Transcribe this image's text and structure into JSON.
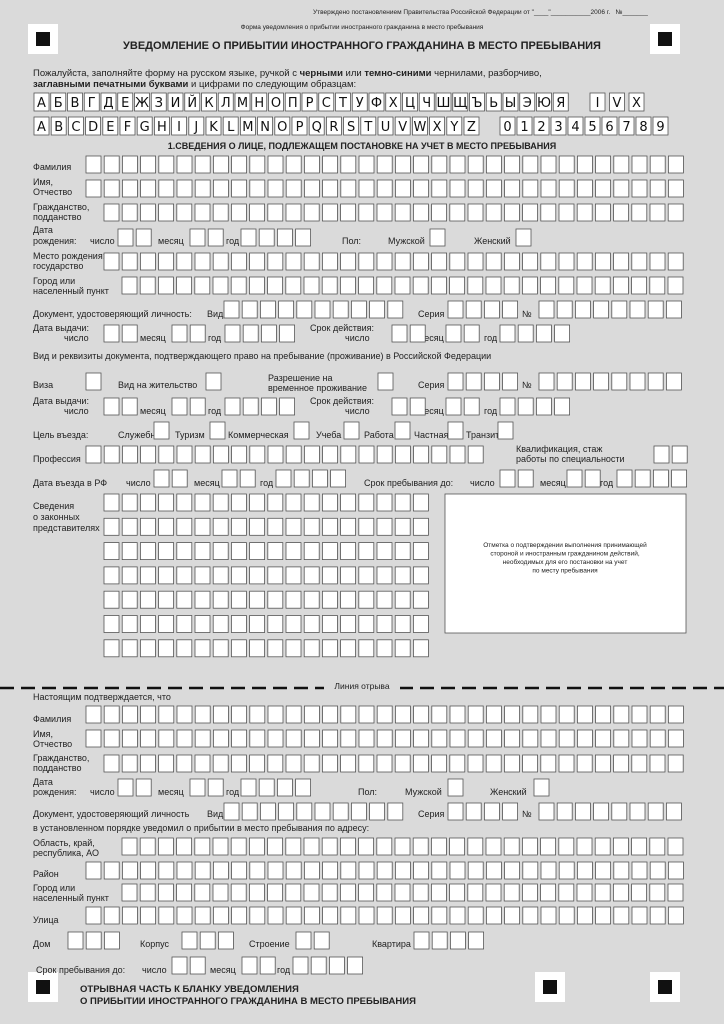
{
  "header": {
    "approval": "Утверждено постановлением Правительства Российской Федерации от \"____\"___________2006 г.   №_______",
    "form_name": "Форма уведомления о прибытии иностранного гражданина в место пребывания",
    "title": "УВЕДОМЛЕНИЕ О ПРИБЫТИИ ИНОСТРАННОГО ГРАЖДАНИНА В МЕСТО ПРЕБЫВАНИЯ",
    "instructions": [
      [
        {
          "text": "Пожалуйста, заполняйте форму на русском языке, ручкой с ",
          "bold": false
        },
        {
          "text": "черными",
          "bold": true
        },
        {
          "text": " или ",
          "bold": false
        },
        {
          "text": "темно-синими",
          "bold": true
        },
        {
          "text": " чернилами, разборчиво,",
          "bold": false
        }
      ],
      [
        {
          "text": "заглавными печатными буквами",
          "bold": true
        },
        {
          "text": " и цифрами по следующим образцам:",
          "bold": false
        }
      ]
    ]
  },
  "samples": {
    "cyrillic": "АБВГДЕЖЗИЙКЛМНОПРСТУФХЦЧШЩЪЬЫЭЮЯ",
    "roman": "IVX",
    "latin": "ABCDEFGHIJKLMNOPQRSTUVWXYZ",
    "digits": "0123456789"
  },
  "part1": {
    "title": "1.СВЕДЕНИЯ О ЛИЦЕ, ПОДЛЕЖАЩЕМ ПОСТАНОВКЕ НА УЧЕТ В МЕСТО ПРЕБЫВАНИЯ",
    "labels": [
      "Фамилия",
      "Имя,",
      "Отчество",
      "Гражданство,",
      "подданство",
      "Дата",
      "рождения:",
      "число",
      "месяц",
      "год",
      "Пол:",
      "Мужской",
      "Женский",
      "Место рождения:",
      "государство",
      "Город или",
      "населенный пункт",
      "Документ, удостоверяющий личность:",
      "Вид",
      "Серия",
      "№",
      "Дата выдачи:",
      "число",
      "месяц",
      "год",
      "Срок действия:",
      "число",
      "месяц",
      "год",
      "Вид и реквизиты документа, подтверждающего право на пребывание (проживание) в Российской Федерации",
      "Виза",
      "Вид на жительство",
      "Разрешение на",
      "временное проживание",
      "Серия",
      "№",
      "Дата выдачи:",
      "число",
      "месяц",
      "год",
      "Срок действия:",
      "число",
      "месяц",
      "год",
      "Цель въезда:",
      "Служебная",
      "Туризм",
      "Коммерческая",
      "Учеба",
      "Работа",
      "Частная",
      "Транзит",
      "Профессия",
      "Квалификация, стаж",
      "работы по специальности",
      "Дата въезда в РФ",
      "число",
      "месяц",
      "год",
      "Срок пребывания до:",
      "число",
      "месяц",
      "год",
      "Сведения",
      "о законных",
      "представителях"
    ],
    "note": [
      "Отметка о подтверждении выполнения принимающей",
      "стороной и иностранным гражданином действий,",
      "необходимых для его постановки на учет",
      "по месту пребывания"
    ]
  },
  "tear_line": "Линия отрыва",
  "part2": {
    "labels": [
      "Настоящим подтверждается, что",
      "Фамилия",
      "Имя,",
      "Отчество",
      "Гражданство,",
      "подданство",
      "Дата",
      "рождения:",
      "число",
      "месяц",
      "год",
      "Пол:",
      "Мужской",
      "Женский",
      "Документ, удостоверяющий личность",
      "Вид",
      "Серия",
      "№",
      "в установленном порядке уведомил о прибытии в место пребывания по адресу:",
      "Область, край,",
      "республика, АО",
      "Район",
      "Город или",
      "населенный пункт",
      "Улица",
      "Дом",
      "Корпус",
      "Строение",
      "Квартира",
      "Срок пребывания до:",
      "число",
      "месяц",
      "год"
    ],
    "footer": [
      "ОТРЫВНАЯ ЧАСТЬ К БЛАНКУ УВЕДОМЛЕНИЯ",
      "О ПРИБЫТИИ ИНОСТРАННОГО ГРАЖДАНИНА В МЕСТО ПРЕБЫВАНИЯ"
    ]
  }
}
